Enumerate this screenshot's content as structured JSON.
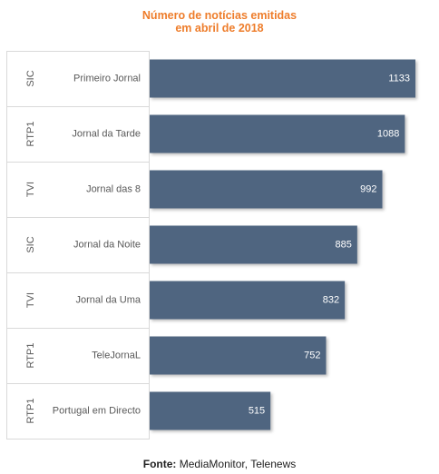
{
  "title": {
    "line1": "Número de notícias emitidas",
    "line2": "em abril de 2018"
  },
  "source": {
    "label": "Fonte:",
    "text": "MediaMonitor, Telenews"
  },
  "colors": {
    "bar": "#4f6580",
    "title": "#ee7d2b",
    "grid": "#d9d9d9",
    "label": "#595959"
  },
  "chart_data": {
    "type": "bar",
    "orientation": "horizontal",
    "categories": [
      {
        "channel": "SIC",
        "program": "Primeiro Jornal"
      },
      {
        "channel": "RTP1",
        "program": "Jornal da Tarde"
      },
      {
        "channel": "TVI",
        "program": "Jornal das 8"
      },
      {
        "channel": "SIC",
        "program": "Jornal da Noite"
      },
      {
        "channel": "TVI",
        "program": "Jornal da Uma"
      },
      {
        "channel": "RTP1",
        "program": "TeleJornaL"
      },
      {
        "channel": "RTP1",
        "program": "Portugal em Directo"
      }
    ],
    "values": [
      1133,
      1088,
      992,
      885,
      832,
      752,
      515
    ],
    "title": "Número de notícias emitidas em abril de 2018",
    "xlim": [
      0,
      1200
    ],
    "data_labels": true,
    "legend": "none"
  }
}
